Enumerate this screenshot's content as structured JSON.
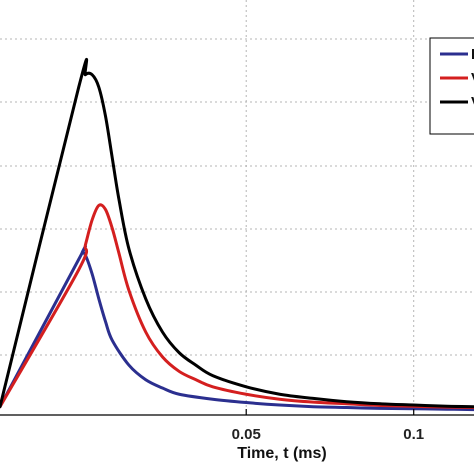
{
  "chart_data": {
    "type": "line",
    "title": "",
    "xlabel": "Time,  t (ms)",
    "ylabel": "",
    "xlim": [
      -0.0235,
      0.118
    ],
    "ylim": [
      0,
      1
    ],
    "x_ticks": [
      0.05,
      0.1
    ],
    "x_tick_labels": [
      "0.05",
      "0.1"
    ],
    "grid": true,
    "legend_position": "top-right",
    "series": [
      {
        "color": "#2b2f8f",
        "x": [
          -0.0235,
          0.0,
          0.001,
          0.002,
          0.004,
          0.006,
          0.008,
          0.01,
          0.015,
          0.02,
          0.025,
          0.03,
          0.04,
          0.05,
          0.06,
          0.07,
          0.08,
          0.09,
          0.1,
          0.11,
          0.118
        ],
        "y": [
          0.02,
          0.375,
          0.39,
          0.385,
          0.34,
          0.28,
          0.225,
          0.18,
          0.12,
          0.085,
          0.065,
          0.05,
          0.038,
          0.03,
          0.024,
          0.02,
          0.018,
          0.016,
          0.015,
          0.014,
          0.013
        ]
      },
      {
        "color": "#d41f1f",
        "x": [
          -0.0235,
          0.0,
          0.002,
          0.004,
          0.006,
          0.008,
          0.01,
          0.012,
          0.015,
          0.02,
          0.025,
          0.03,
          0.035,
          0.04,
          0.05,
          0.06,
          0.07,
          0.08,
          0.09,
          0.1,
          0.11,
          0.118
        ],
        "y": [
          0.02,
          0.35,
          0.41,
          0.47,
          0.505,
          0.495,
          0.45,
          0.39,
          0.3,
          0.2,
          0.14,
          0.105,
          0.085,
          0.068,
          0.05,
          0.038,
          0.031,
          0.027,
          0.023,
          0.021,
          0.019,
          0.018
        ]
      },
      {
        "color": "#000000",
        "x": [
          -0.0235,
          0.0,
          0.002,
          0.004,
          0.006,
          0.008,
          0.01,
          0.012,
          0.015,
          0.02,
          0.025,
          0.03,
          0.035,
          0.04,
          0.05,
          0.06,
          0.07,
          0.08,
          0.09,
          0.1,
          0.11,
          0.118
        ],
        "y": [
          0.02,
          0.79,
          0.82,
          0.82,
          0.79,
          0.72,
          0.62,
          0.52,
          0.4,
          0.28,
          0.2,
          0.15,
          0.12,
          0.095,
          0.068,
          0.05,
          0.04,
          0.032,
          0.027,
          0.024,
          0.021,
          0.02
        ]
      }
    ],
    "legend": {
      "entries": [
        {
          "color": "#2b2f8f",
          "label": "I"
        },
        {
          "color": "#d41f1f",
          "label": "V"
        },
        {
          "color": "#000000",
          "label": "V"
        }
      ]
    }
  }
}
